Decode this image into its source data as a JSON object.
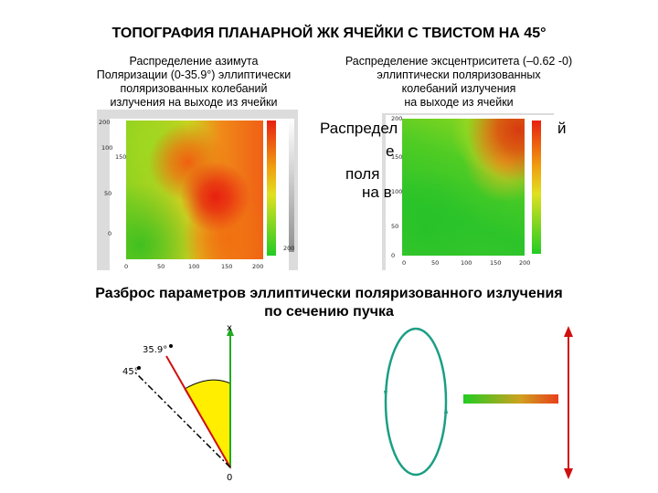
{
  "title": "ТОПОГРАФИЯ ПЛАНАРНОЙ ЖК ЯЧЕЙКИ С ТВИСТОМ НА 45°",
  "left_panel": {
    "caption": [
      "Распределение азимута",
      "Поляризации (0-35.9°) эллиптически",
      "поляризованных колебаний",
      "излучения на выходе из ячейки"
    ],
    "y_ticks": [
      "200",
      "150",
      "100",
      "50",
      "0"
    ],
    "x_ticks": [
      "0",
      "50",
      "100",
      "150",
      "200"
    ],
    "gray_bar_ticks": [
      "200"
    ]
  },
  "right_panel": {
    "caption": [
      "Распределение эксцентриситета (–0.62 -0)",
      "эллиптически поляризованных",
      "колебаний излучения",
      "на выходе из ячейки"
    ],
    "y_ticks": [
      "200",
      "150",
      "100",
      "50",
      "0"
    ],
    "x_ticks": [
      "0",
      "50",
      "100",
      "150",
      "200"
    ]
  },
  "overlay_text": [
    "Распредел",
    "й",
    "е",
    "поля",
    "на в"
  ],
  "bottom_title": [
    "Разброс параметров эллиптически поляризованного излучения",
    "по сечению пучка"
  ],
  "angle_diagram": {
    "axis_label": "x",
    "azimuth_label": "35.9°",
    "twist_label": "45°",
    "origin_label": "0"
  },
  "colors": {
    "red_line": "#d01010",
    "green_axis": "#22aa22",
    "ellipse": "#1a9e84",
    "gradient_start": "#22cc22",
    "gradient_end": "#e8401a",
    "sector_fill": "#ffee00"
  }
}
